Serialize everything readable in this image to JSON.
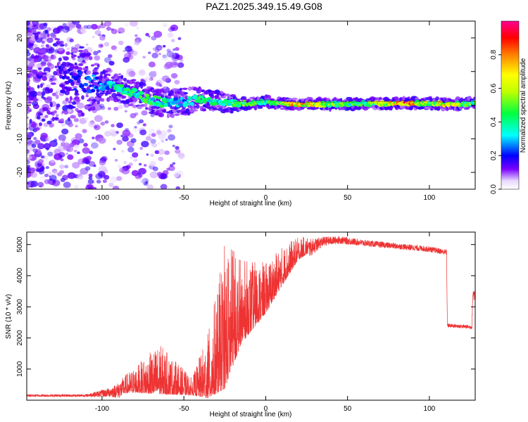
{
  "title": "PAZ1.2025.349.15.49.G08",
  "chart_data": [
    {
      "type": "heatmap",
      "xlabel": "Height of straight line (km)",
      "ylabel": "Frequency (Hz)",
      "xlim": [
        -146,
        128
      ],
      "ylim": [
        -25,
        25
      ],
      "xticks": [
        -100,
        -50,
        0,
        50,
        100
      ],
      "yticks": [
        -20,
        -10,
        0,
        10,
        20
      ],
      "colorbar": {
        "label": "Normalized spectral amplitude",
        "range": [
          0,
          1
        ],
        "ticks": [
          "0.0",
          "0.2",
          "0.4",
          "0.6",
          "0.8"
        ],
        "tick_values": [
          0.0,
          0.2,
          0.4,
          0.6,
          0.8
        ]
      },
      "ridge": [
        {
          "x": -140,
          "f": 8,
          "amp": 0.15,
          "spread": 10
        },
        {
          "x": -110,
          "f": 7,
          "amp": 0.25,
          "spread": 6
        },
        {
          "x": -100,
          "f": 6,
          "amp": 0.35,
          "spread": 3
        },
        {
          "x": -90,
          "f": 5,
          "amp": 0.45,
          "spread": 2.5
        },
        {
          "x": -80,
          "f": 3.5,
          "amp": 0.5,
          "spread": 2.5
        },
        {
          "x": -70,
          "f": 1.5,
          "amp": 0.5,
          "spread": 2.5
        },
        {
          "x": -60,
          "f": 0.5,
          "amp": 0.45,
          "spread": 2.5
        },
        {
          "x": -50,
          "f": 1,
          "amp": 0.35,
          "spread": 2.5
        },
        {
          "x": -40,
          "f": 2,
          "amp": 0.5,
          "spread": 2
        },
        {
          "x": -30,
          "f": 1,
          "amp": 0.45,
          "spread": 2
        },
        {
          "x": -20,
          "f": 0.5,
          "amp": 0.5,
          "spread": 1.5
        },
        {
          "x": -10,
          "f": 0.5,
          "amp": 0.6,
          "spread": 1
        },
        {
          "x": 0,
          "f": 1,
          "amp": 0.5,
          "spread": 1
        },
        {
          "x": 10,
          "f": 0.5,
          "amp": 0.7,
          "spread": 1
        },
        {
          "x": 20,
          "f": 0.3,
          "amp": 0.85,
          "spread": 1
        },
        {
          "x": 40,
          "f": 0.3,
          "amp": 0.6,
          "spread": 1
        },
        {
          "x": 60,
          "f": 0.4,
          "amp": 0.5,
          "spread": 1
        },
        {
          "x": 85,
          "f": 0.6,
          "amp": 0.95,
          "spread": 1
        },
        {
          "x": 100,
          "f": 0.5,
          "amp": 0.6,
          "spread": 1
        },
        {
          "x": 110,
          "f": 0.3,
          "amp": 0.8,
          "spread": 1
        },
        {
          "x": 128,
          "f": 0.5,
          "amp": 0.5,
          "spread": 1
        }
      ]
    },
    {
      "type": "line",
      "xlabel": "Height of straight line (km)",
      "ylabel": "SNR (10 * v/v)",
      "xlim": [
        -146,
        128
      ],
      "ylim": [
        0,
        5400
      ],
      "xticks": [
        -100,
        -50,
        0,
        50,
        100
      ],
      "yticks": [
        1000,
        2000,
        3000,
        4000,
        5000
      ],
      "color": "#ee3333",
      "envelope": [
        {
          "x": -146,
          "base": 150,
          "noise": 40
        },
        {
          "x": -110,
          "base": 150,
          "noise": 40
        },
        {
          "x": -95,
          "base": 250,
          "noise": 150
        },
        {
          "x": -80,
          "base": 450,
          "noise": 450
        },
        {
          "x": -65,
          "base": 600,
          "noise": 900
        },
        {
          "x": -55,
          "base": 450,
          "noise": 600
        },
        {
          "x": -45,
          "base": 300,
          "noise": 300
        },
        {
          "x": -35,
          "base": 600,
          "noise": 1200
        },
        {
          "x": -25,
          "base": 1500,
          "noise": 2500
        },
        {
          "x": -15,
          "base": 2500,
          "noise": 1500
        },
        {
          "x": 0,
          "base": 3200,
          "noise": 900
        },
        {
          "x": 10,
          "base": 4000,
          "noise": 700
        },
        {
          "x": 20,
          "base": 4700,
          "noise": 400
        },
        {
          "x": 35,
          "base": 5100,
          "noise": 150
        },
        {
          "x": 45,
          "base": 5150,
          "noise": 120
        },
        {
          "x": 60,
          "base": 5050,
          "noise": 100
        },
        {
          "x": 80,
          "base": 4950,
          "noise": 90
        },
        {
          "x": 100,
          "base": 4850,
          "noise": 90
        },
        {
          "x": 110.5,
          "base": 4750,
          "noise": 90
        },
        {
          "x": 111,
          "base": 2400,
          "noise": 60
        },
        {
          "x": 126,
          "base": 2350,
          "noise": 60
        },
        {
          "x": 126.5,
          "base": 3400,
          "noise": 200
        },
        {
          "x": 128,
          "base": 3400,
          "noise": 200
        }
      ]
    }
  ]
}
